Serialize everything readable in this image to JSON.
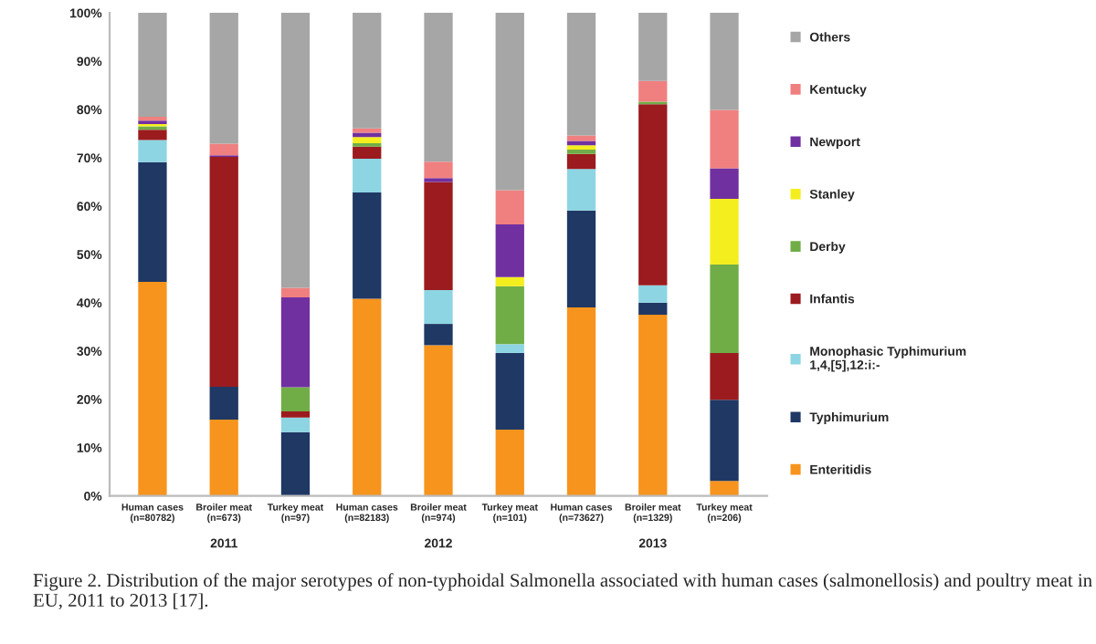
{
  "chart_data": {
    "type": "bar",
    "stacked": true,
    "categories": [
      "Human cases\n(n=80782)",
      "Broiler meat\n(n=673)",
      "Turkey meat\n(n=97)",
      "Human cases\n(n=82183)",
      "Broiler meat\n(n=974)",
      "Turkey meat\n(n=101)",
      "Human cases\n(n=73627)",
      "Broiler meat\n(n=1329)",
      "Turkey meat\n(n=206)"
    ],
    "series": [
      {
        "name": "Enteritidis",
        "color": "#f7941d",
        "values": [
          44.3,
          15.8,
          0,
          40.8,
          31.2,
          13.7,
          39.0,
          37.5,
          3.1
        ]
      },
      {
        "name": "Typhimurium",
        "color": "#1f3864",
        "values": [
          24.8,
          6.8,
          13.2,
          22.0,
          4.4,
          15.9,
          20.1,
          2.5,
          16.8
        ]
      },
      {
        "name": "Monophasic Typhimurium\n1,4,[5],12:i:-",
        "color": "#8dd5e3",
        "values": [
          4.6,
          0,
          3.0,
          7.0,
          7.0,
          1.8,
          8.6,
          3.6,
          0
        ]
      },
      {
        "name": "Infantis",
        "color": "#9b1b1e",
        "values": [
          2.1,
          47.6,
          1.3,
          2.5,
          22.4,
          0,
          3.1,
          37.5,
          9.7
        ]
      },
      {
        "name": "Derby",
        "color": "#70ad47",
        "values": [
          0.7,
          0,
          5.0,
          0.7,
          0,
          12.0,
          0.9,
          0.5,
          18.3
        ]
      },
      {
        "name": "Stanley",
        "color": "#f5ee1f",
        "values": [
          0.5,
          0,
          0,
          1.3,
          0,
          1.9,
          0.9,
          0,
          13.6
        ]
      },
      {
        "name": "Newport",
        "color": "#7030a0",
        "values": [
          0.7,
          0.3,
          18.6,
          0.9,
          0.8,
          10.9,
          0.9,
          0,
          6.3
        ]
      },
      {
        "name": "Kentucky",
        "color": "#f08080",
        "values": [
          0.8,
          2.4,
          2.0,
          0.9,
          3.4,
          7.1,
          1.1,
          4.3,
          12.1
        ]
      },
      {
        "name": "Others",
        "color": "#a6a6a6",
        "values": [
          21.5,
          27.1,
          56.9,
          23.9,
          30.8,
          36.7,
          25.4,
          14.1,
          20.1
        ]
      }
    ],
    "ylim": [
      0,
      100
    ],
    "yticks": [
      {
        "value": 0,
        "label": "0%"
      },
      {
        "value": 10,
        "label": "10%"
      },
      {
        "value": 20,
        "label": "20%"
      },
      {
        "value": 30,
        "label": "30%"
      },
      {
        "value": 40,
        "label": "40%"
      },
      {
        "value": 50,
        "label": "50%"
      },
      {
        "value": 60,
        "label": "60%"
      },
      {
        "value": 70,
        "label": "70%"
      },
      {
        "value": 80,
        "label": "80%"
      },
      {
        "value": 90,
        "label": "90%"
      },
      {
        "value": 100,
        "label": "100%"
      }
    ],
    "grid": false,
    "legend": "right",
    "annotations": [
      "2011",
      "2012",
      "2013",
      "Figure 2. Distribution of the major serotypes of non-typhoidal Salmonella associated with human cases (salmonellosis) and poultry meat in EU, 2011 to 2013 [17]."
    ]
  }
}
